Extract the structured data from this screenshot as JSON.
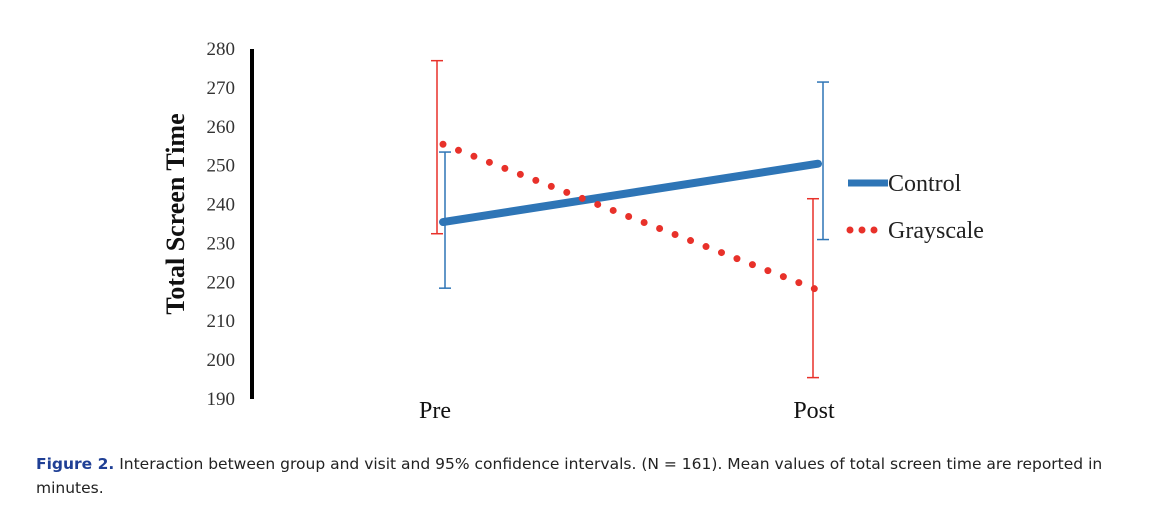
{
  "chart_data": {
    "type": "line",
    "title": "",
    "xlabel": "",
    "ylabel": "Total Screen Time",
    "categories": [
      "Pre",
      "Post"
    ],
    "ylim": [
      190,
      280
    ],
    "yticks": [
      280,
      270,
      260,
      250,
      240,
      230,
      220,
      210,
      200,
      190
    ],
    "grid": false,
    "legend_position": "right",
    "series": [
      {
        "name": "Control",
        "values": [
          235.5,
          250.5
        ],
        "ci_low": [
          218.5,
          231
        ],
        "ci_high": [
          253.5,
          271.5
        ],
        "color": "#2e75b6",
        "style": "solid"
      },
      {
        "name": "Grayscale",
        "values": [
          255.5,
          218
        ],
        "ci_low": [
          232.5,
          195.5
        ],
        "ci_high": [
          277,
          241.5
        ],
        "color": "#e8312a",
        "style": "dotted"
      }
    ]
  },
  "caption": {
    "lead": "Figure 2.",
    "text": " Interaction between group and visit and 95% confidence intervals. (N = 161). Mean values of total screen time are reported in minutes."
  }
}
